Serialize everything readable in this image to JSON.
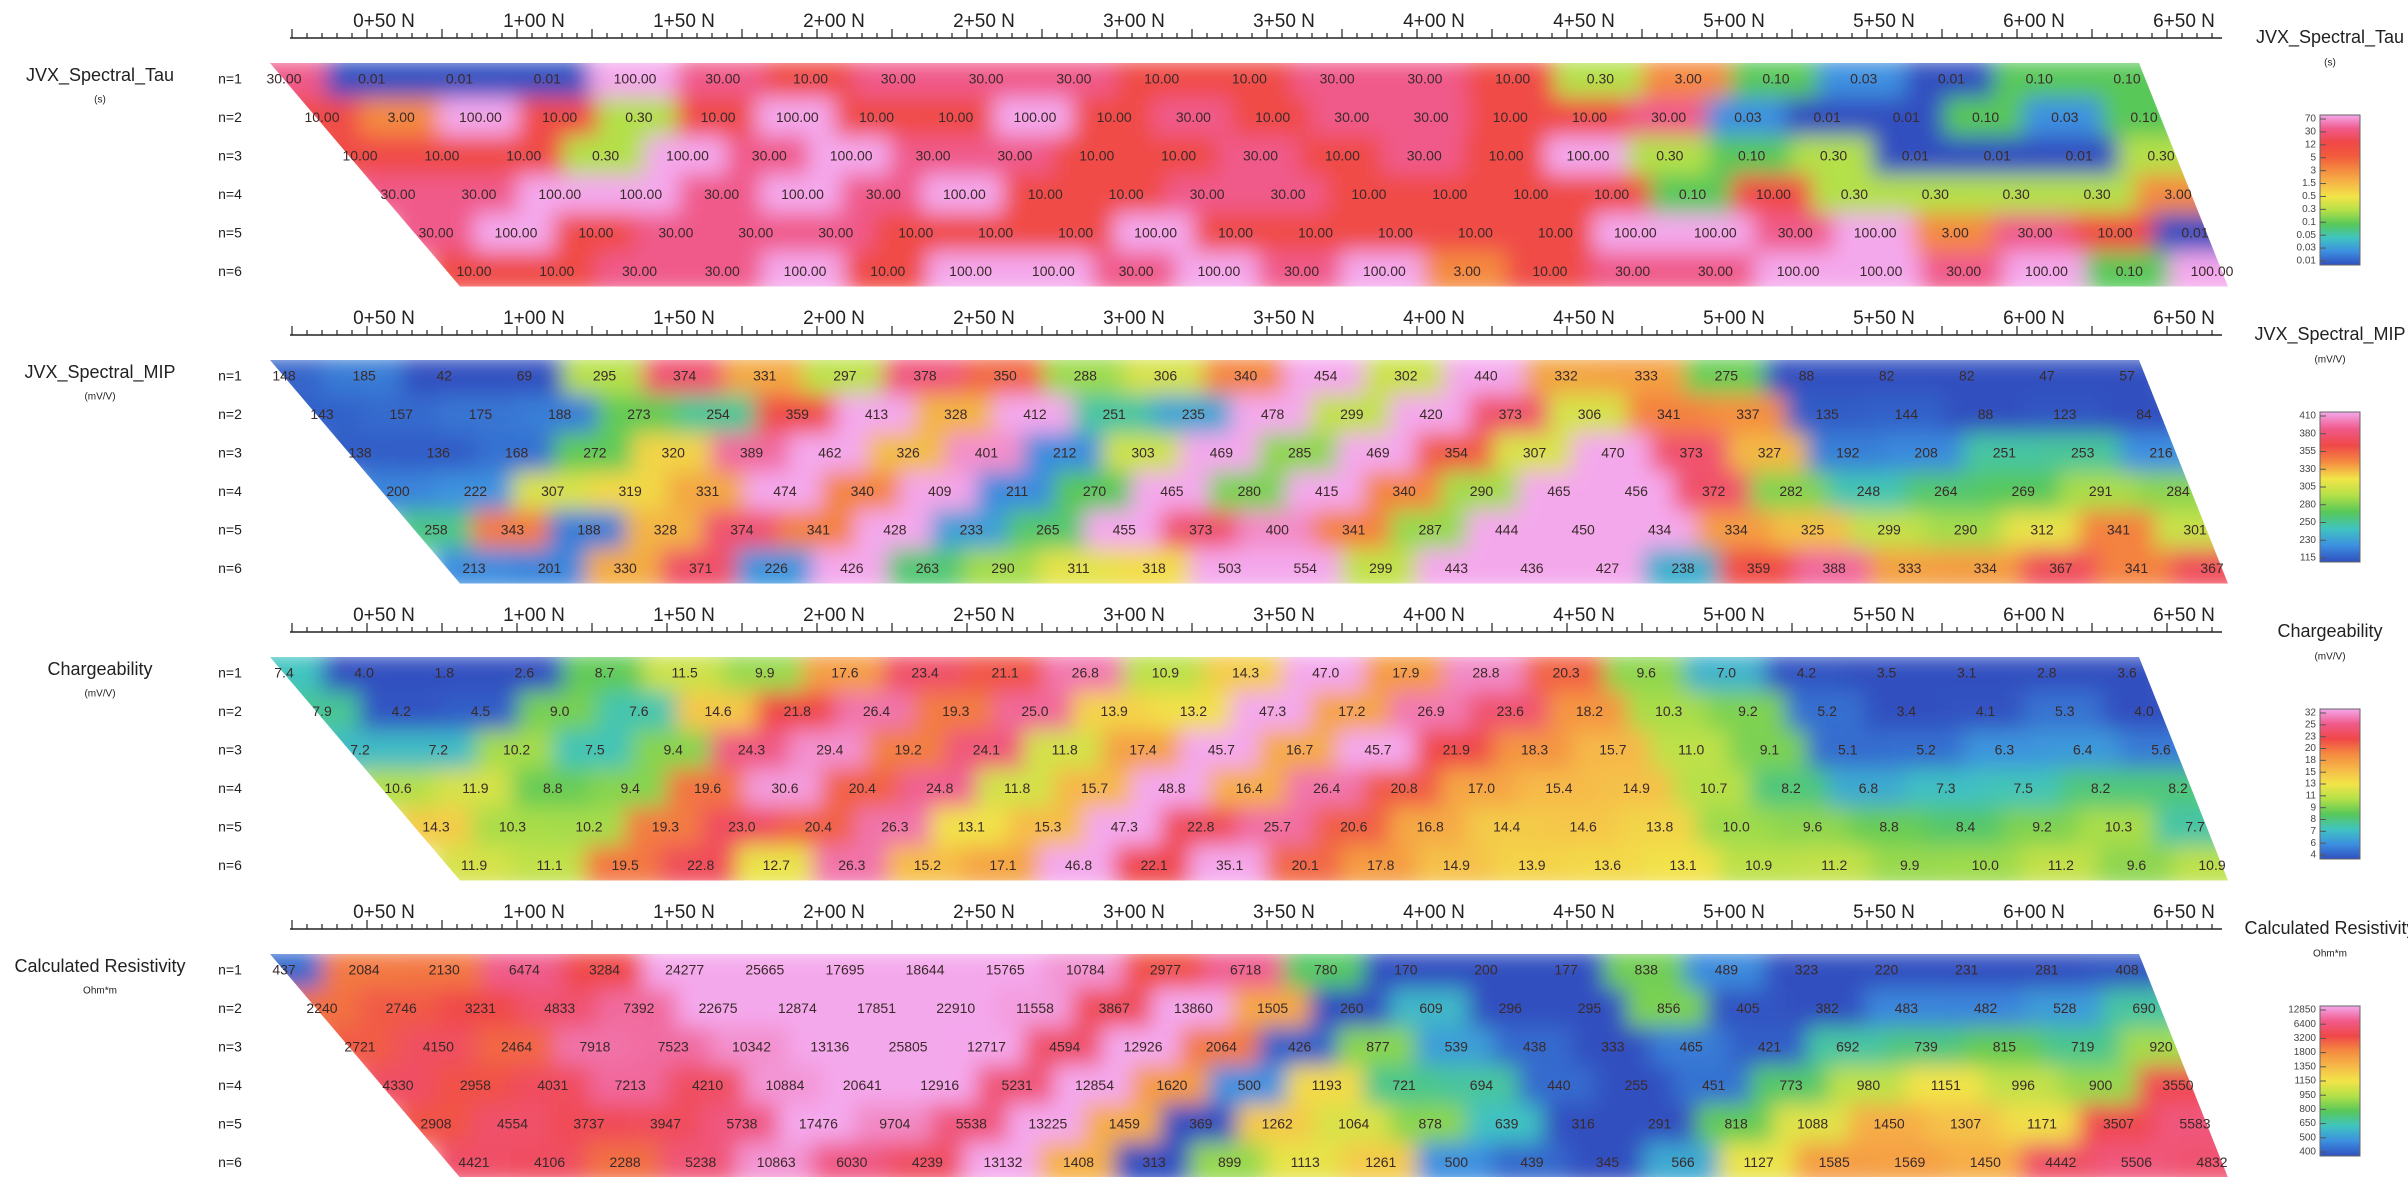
{
  "chart_data": [
    {
      "type": "pseudosection",
      "title": "JVX_Spectral_Tau",
      "unit": "(s)",
      "log": true,
      "stations": [
        "0+50 N",
        "1+00 N",
        "1+50 N",
        "2+00 N",
        "2+50 N",
        "3+00 N",
        "3+50 N",
        "4+00 N",
        "4+50 N",
        "5+00 N",
        "5+50 N",
        "6+00 N",
        "6+50 N"
      ],
      "levels": [
        "n=1",
        "n=2",
        "n=3",
        "n=4",
        "n=5",
        "n=6"
      ],
      "values": [
        [
          30,
          0.01,
          0.01,
          0.01,
          100,
          30,
          10,
          30,
          30,
          30,
          10,
          10,
          30,
          30,
          10,
          0.3,
          3,
          0.1,
          0.03,
          0.01,
          0.1,
          0.1
        ],
        [
          10,
          3,
          100,
          10,
          0.3,
          10,
          100,
          10,
          10,
          100,
          10,
          30,
          10,
          30,
          30,
          10,
          10,
          30,
          0.03,
          0.01,
          0.01,
          0.1,
          0.03,
          0.1
        ],
        [
          10,
          10,
          10,
          0.3,
          100,
          30,
          100,
          30,
          30,
          10,
          10,
          30,
          10,
          30,
          10,
          100,
          0.3,
          0.1,
          0.3,
          0.01,
          0.01,
          0.01,
          0.3
        ],
        [
          30,
          30,
          100,
          100,
          30,
          100,
          30,
          100,
          10,
          10,
          30,
          30,
          10,
          10,
          10,
          10,
          0.1,
          10,
          0.3,
          0.3,
          0.3,
          0.3,
          3
        ],
        [
          30,
          100,
          10,
          30,
          30,
          30,
          10,
          10,
          10,
          100,
          10,
          10,
          10,
          10,
          10,
          100,
          100,
          30,
          100,
          3,
          30,
          10,
          0.01
        ],
        [
          10,
          10,
          30,
          30,
          100,
          10,
          100,
          100,
          30,
          100,
          30,
          100,
          3,
          10,
          30,
          30,
          100,
          100,
          30,
          100,
          0.1,
          100
        ]
      ],
      "value_labels": [
        [
          "30.00",
          "0.01",
          "0.01",
          "0.01",
          "100.00",
          "30.00",
          "10.00",
          "30.00",
          "30.00",
          "30.00",
          "10.00",
          "10.00",
          "30.00",
          "30.00",
          "10.00",
          "0.30",
          "3.00",
          "0.10",
          "0.03",
          "0.01",
          "0.10",
          "0.10"
        ],
        [
          "10.00",
          "3.00",
          "100.00",
          "10.00",
          "0.30",
          "10.00",
          "100.00",
          "10.00",
          "10.00",
          "100.00",
          "10.00",
          "30.00",
          "10.00",
          "30.00",
          "30.00",
          "10.00",
          "10.00",
          "30.00",
          "0.03",
          "0.01",
          "0.01",
          "0.10",
          "0.03",
          "0.10"
        ],
        [
          "10.00",
          "10.00",
          "10.00",
          "0.30",
          "100.00",
          "30.00",
          "100.00",
          "30.00",
          "30.00",
          "10.00",
          "10.00",
          "30.00",
          "10.00",
          "30.00",
          "10.00",
          "100.00",
          "0.30",
          "0.10",
          "0.30",
          "0.01",
          "0.01",
          "0.01",
          "0.30"
        ],
        [
          "30.00",
          "30.00",
          "100.00",
          "100.00",
          "30.00",
          "100.00",
          "30.00",
          "100.00",
          "10.00",
          "10.00",
          "30.00",
          "30.00",
          "10.00",
          "10.00",
          "10.00",
          "10.00",
          "0.10",
          "10.00",
          "0.30",
          "0.30",
          "0.30",
          "0.30",
          "3.00"
        ],
        [
          "30.00",
          "100.00",
          "10.00",
          "30.00",
          "30.00",
          "30.00",
          "10.00",
          "10.00",
          "10.00",
          "100.00",
          "10.00",
          "10.00",
          "10.00",
          "10.00",
          "10.00",
          "100.00",
          "100.00",
          "30.00",
          "100.00",
          "3.00",
          "30.00",
          "10.00",
          "0.01"
        ],
        [
          "10.00",
          "10.00",
          "30.00",
          "30.00",
          "100.00",
          "10.00",
          "100.00",
          "100.00",
          "30.00",
          "100.00",
          "30.00",
          "100.00",
          "3.00",
          "10.00",
          "30.00",
          "30.00",
          "100.00",
          "100.00",
          "30.00",
          "100.00",
          "0.10",
          "100.00"
        ]
      ],
      "colorbar_ticks": [
        70,
        30,
        12,
        5,
        3,
        1.5,
        0.5,
        0.3,
        0.1,
        0.05,
        0.03,
        0.01
      ],
      "colors": [
        "#f4a8ec",
        "#f05a8a",
        "#f04848",
        "#f25a3c",
        "#f48a40",
        "#f6b848",
        "#f2e448",
        "#b4e048",
        "#58c858",
        "#40c4c0",
        "#3c90e0",
        "#3050c0"
      ]
    },
    {
      "type": "pseudosection",
      "title": "JVX_Spectral_MIP",
      "unit": "(mV/V)",
      "log": false,
      "stations": [
        "0+50 N",
        "1+00 N",
        "1+50 N",
        "2+00 N",
        "2+50 N",
        "3+00 N",
        "3+50 N",
        "4+00 N",
        "4+50 N",
        "5+00 N",
        "5+50 N",
        "6+00 N",
        "6+50 N"
      ],
      "levels": [
        "n=1",
        "n=2",
        "n=3",
        "n=4",
        "n=5",
        "n=6"
      ],
      "values": [
        [
          148,
          185,
          42,
          69,
          295,
          374,
          331,
          297,
          378,
          350,
          288,
          306,
          340,
          454,
          302,
          440,
          332,
          333,
          275,
          88,
          82,
          82,
          47,
          57
        ],
        [
          143,
          157,
          175,
          188,
          273,
          254,
          359,
          413,
          328,
          412,
          251,
          235,
          478,
          299,
          420,
          373,
          306,
          341,
          337,
          135,
          144,
          88,
          123,
          84
        ],
        [
          138,
          136,
          168,
          272,
          320,
          389,
          462,
          326,
          401,
          212,
          303,
          469,
          285,
          469,
          354,
          307,
          470,
          373,
          327,
          192,
          208,
          251,
          253,
          216
        ],
        [
          200,
          222,
          307,
          319,
          331,
          474,
          340,
          409,
          211,
          270,
          465,
          280,
          415,
          340,
          290,
          465,
          456,
          372,
          282,
          248,
          264,
          269,
          291,
          284
        ],
        [
          258,
          343,
          188,
          328,
          374,
          341,
          428,
          233,
          265,
          455,
          373,
          400,
          341,
          287,
          444,
          450,
          434,
          334,
          325,
          299,
          290,
          312,
          341,
          301
        ],
        [
          213,
          201,
          330,
          371,
          226,
          426,
          263,
          290,
          311,
          318,
          503,
          554,
          299,
          443,
          436,
          427,
          238,
          359,
          388,
          333,
          334,
          367,
          341,
          367
        ]
      ],
      "colorbar_ticks": [
        410,
        380,
        355,
        330,
        305,
        280,
        250,
        230,
        115
      ],
      "colors": [
        "#f4a8ec",
        "#f05a8a",
        "#f04848",
        "#f48a40",
        "#f2e448",
        "#b4e048",
        "#58c858",
        "#40c4c0",
        "#3c90e0",
        "#3050c0"
      ]
    },
    {
      "type": "pseudosection",
      "title": "Chargeability",
      "unit": "(mV/V)",
      "log": false,
      "stations": [
        "0+50 N",
        "1+00 N",
        "1+50 N",
        "2+00 N",
        "2+50 N",
        "3+00 N",
        "3+50 N",
        "4+00 N",
        "4+50 N",
        "5+00 N",
        "5+50 N",
        "6+00 N",
        "6+50 N"
      ],
      "levels": [
        "n=1",
        "n=2",
        "n=3",
        "n=4",
        "n=5",
        "n=6"
      ],
      "values": [
        [
          7.4,
          4,
          1.8,
          2.6,
          8.7,
          11.5,
          9.9,
          17.6,
          23.4,
          21.1,
          26.8,
          10.9,
          14.3,
          47,
          17.9,
          28.8,
          20.3,
          9.6,
          7,
          4.2,
          3.5,
          3.1,
          2.8,
          3.6
        ],
        [
          7.9,
          4.2,
          4.5,
          9,
          7.6,
          14.6,
          21.8,
          26.4,
          19.3,
          25,
          13.9,
          13.2,
          47.3,
          17.2,
          26.9,
          23.6,
          18.2,
          10.3,
          9.2,
          5.2,
          3.4,
          4.1,
          5.3,
          4
        ],
        [
          7.2,
          7.2,
          10.2,
          7.5,
          9.4,
          24.3,
          29.4,
          19.2,
          24.1,
          11.8,
          17.4,
          45.7,
          16.7,
          45.7,
          21.9,
          18.3,
          15.7,
          11,
          9.1,
          5.1,
          5.2,
          6.3,
          6.4,
          5.6
        ],
        [
          10.6,
          11.9,
          8.8,
          9.4,
          19.6,
          30.6,
          20.4,
          24.8,
          11.8,
          15.7,
          48.8,
          16.4,
          26.4,
          20.8,
          17,
          15.4,
          14.9,
          10.7,
          8.2,
          6.8,
          7.3,
          7.5,
          8.2,
          8.2
        ],
        [
          14.3,
          10.3,
          10.2,
          19.3,
          23,
          20.4,
          26.3,
          13.1,
          15.3,
          47.3,
          22.8,
          25.7,
          20.6,
          16.8,
          14.4,
          14.6,
          13.8,
          10,
          9.6,
          8.8,
          8.4,
          9.2,
          10.3,
          7.7
        ],
        [
          11.9,
          11.1,
          19.5,
          22.8,
          12.7,
          26.3,
          15.2,
          17.1,
          46.8,
          22.1,
          35.1,
          20.1,
          17.8,
          14.9,
          13.9,
          13.6,
          13.1,
          10.9,
          11.2,
          9.9,
          10,
          11.2,
          9.6,
          10.9
        ]
      ],
      "value_labels": [
        [
          "7.4",
          "4.0",
          "1.8",
          "2.6",
          "8.7",
          "11.5",
          "9.9",
          "17.6",
          "23.4",
          "21.1",
          "26.8",
          "10.9",
          "14.3",
          "47.0",
          "17.9",
          "28.8",
          "20.3",
          "9.6",
          "7.0",
          "4.2",
          "3.5",
          "3.1",
          "2.8",
          "3.6"
        ],
        [
          "7.9",
          "4.2",
          "4.5",
          "9.0",
          "7.6",
          "14.6",
          "21.8",
          "26.4",
          "19.3",
          "25.0",
          "13.9",
          "13.2",
          "47.3",
          "17.2",
          "26.9",
          "23.6",
          "18.2",
          "10.3",
          "9.2",
          "5.2",
          "3.4",
          "4.1",
          "5.3",
          "4.0"
        ],
        [
          "7.2",
          "7.2",
          "10.2",
          "7.5",
          "9.4",
          "24.3",
          "29.4",
          "19.2",
          "24.1",
          "11.8",
          "17.4",
          "45.7",
          "16.7",
          "45.7",
          "21.9",
          "18.3",
          "15.7",
          "11.0",
          "9.1",
          "5.1",
          "5.2",
          "6.3",
          "6.4",
          "5.6"
        ],
        [
          "10.6",
          "11.9",
          "8.8",
          "9.4",
          "19.6",
          "30.6",
          "20.4",
          "24.8",
          "11.8",
          "15.7",
          "48.8",
          "16.4",
          "26.4",
          "20.8",
          "17.0",
          "15.4",
          "14.9",
          "10.7",
          "8.2",
          "6.8",
          "7.3",
          "7.5",
          "8.2",
          "8.2"
        ],
        [
          "14.3",
          "10.3",
          "10.2",
          "19.3",
          "23.0",
          "20.4",
          "26.3",
          "13.1",
          "15.3",
          "47.3",
          "22.8",
          "25.7",
          "20.6",
          "16.8",
          "14.4",
          "14.6",
          "13.8",
          "10.0",
          "9.6",
          "8.8",
          "8.4",
          "9.2",
          "10.3",
          "7.7"
        ],
        [
          "11.9",
          "11.1",
          "19.5",
          "22.8",
          "12.7",
          "26.3",
          "15.2",
          "17.1",
          "46.8",
          "22.1",
          "35.1",
          "20.1",
          "17.8",
          "14.9",
          "13.9",
          "13.6",
          "13.1",
          "10.9",
          "11.2",
          "9.9",
          "10.0",
          "11.2",
          "9.6",
          "10.9"
        ]
      ],
      "colorbar_ticks": [
        32,
        25,
        23,
        20,
        18,
        15,
        13,
        11,
        9,
        8,
        7,
        6,
        4
      ],
      "colors": [
        "#f4a8ec",
        "#f05a8a",
        "#f04848",
        "#f48a40",
        "#f6b848",
        "#f2e448",
        "#b4e048",
        "#58c858",
        "#40c4c0",
        "#3c90e0",
        "#3050c0"
      ]
    },
    {
      "type": "pseudosection",
      "title": "Calculated Resistivity",
      "unit": "Ohm*m",
      "log": true,
      "stations": [
        "0+50 N",
        "1+00 N",
        "1+50 N",
        "2+00 N",
        "2+50 N",
        "3+00 N",
        "3+50 N",
        "4+00 N",
        "4+50 N",
        "5+00 N",
        "5+50 N",
        "6+00 N",
        "6+50 N"
      ],
      "levels": [
        "n=1",
        "n=2",
        "n=3",
        "n=4",
        "n=5",
        "n=6"
      ],
      "values": [
        [
          437,
          2084,
          2130,
          6474,
          3284,
          24277,
          25665,
          17695,
          18644,
          15765,
          10784,
          2977,
          6718,
          780,
          170,
          200,
          177,
          838,
          489,
          323,
          220,
          231,
          281,
          408
        ],
        [
          2240,
          2746,
          3231,
          4833,
          7392,
          22675,
          12874,
          17851,
          22910,
          11558,
          3867,
          13860,
          1505,
          260,
          609,
          296,
          295,
          856,
          405,
          382,
          483,
          482,
          528,
          690
        ],
        [
          2721,
          4150,
          2464,
          7918,
          7523,
          10342,
          13136,
          25805,
          12717,
          4594,
          12926,
          2064,
          426,
          877,
          539,
          438,
          333,
          465,
          421,
          692,
          739,
          815,
          719,
          920
        ],
        [
          4330,
          2958,
          4031,
          7213,
          4210,
          10884,
          20641,
          12916,
          5231,
          12854,
          1620,
          500,
          1193,
          721,
          694,
          440,
          255,
          451,
          773,
          980,
          1151,
          996,
          900,
          3550
        ],
        [
          2908,
          4554,
          3737,
          3947,
          5738,
          17476,
          9704,
          5538,
          13225,
          1459,
          369,
          1262,
          1064,
          878,
          639,
          316,
          291,
          818,
          1088,
          1450,
          1307,
          1171,
          3507,
          5583
        ],
        [
          4421,
          4106,
          2288,
          5238,
          10863,
          6030,
          4239,
          13132,
          1408,
          313,
          899,
          1113,
          1261,
          500,
          439,
          345,
          566,
          1127,
          1585,
          1569,
          1450,
          4442,
          5506,
          4832
        ]
      ],
      "colorbar_ticks": [
        12850,
        6400,
        3200,
        1800,
        1350,
        1150,
        950,
        800,
        650,
        500,
        400
      ],
      "colors": [
        "#f4a8ec",
        "#f05a8a",
        "#f04848",
        "#f48a40",
        "#f6b848",
        "#f2e448",
        "#b4e048",
        "#58c858",
        "#40c4c0",
        "#3c90e0",
        "#3050c0"
      ]
    }
  ]
}
